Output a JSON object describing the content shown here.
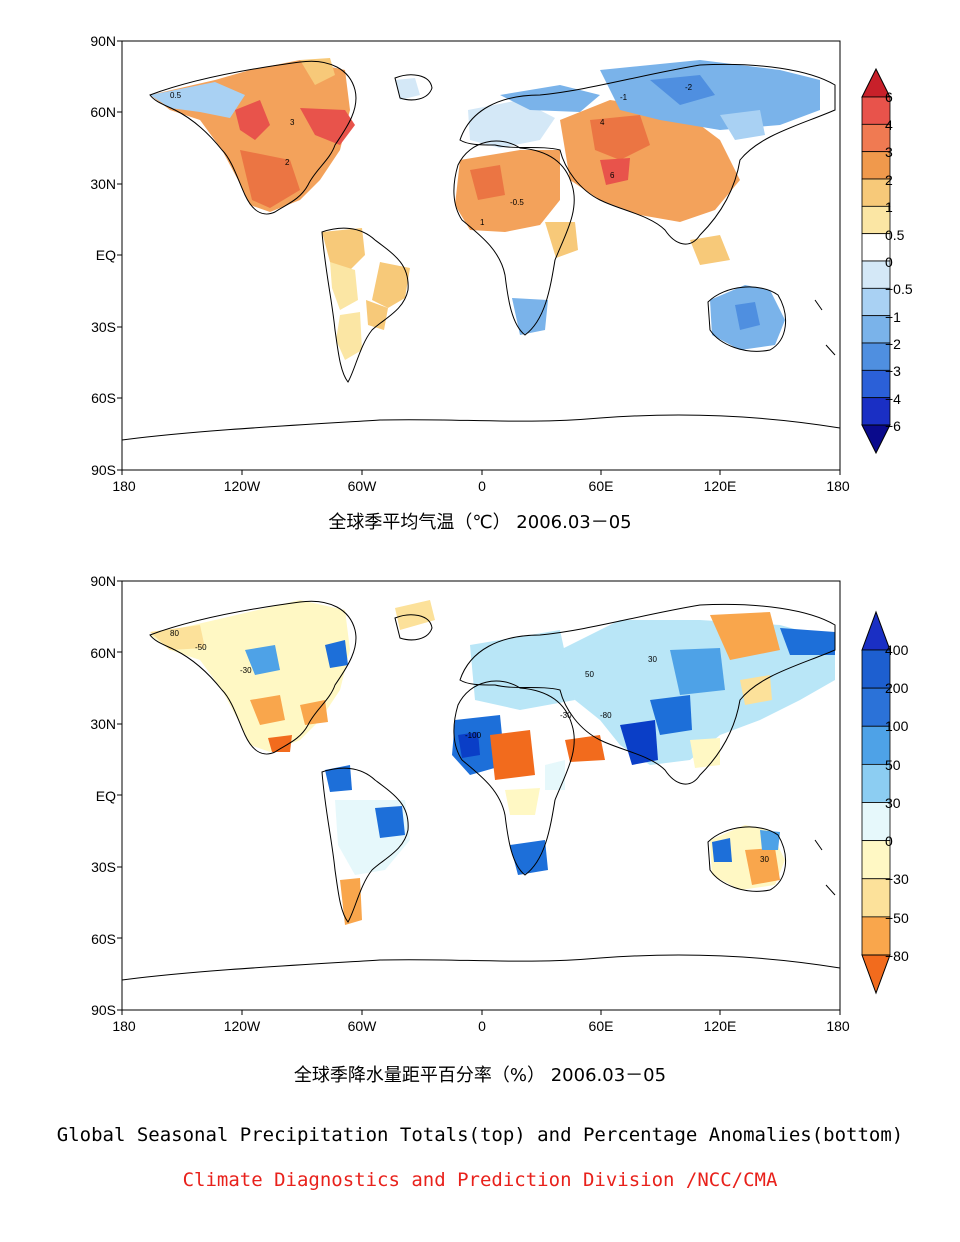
{
  "colors": {
    "ocean": "#ffffff",
    "land_outline": "#000000",
    "warm_palette": [
      "#fbe6a4",
      "#f7c979",
      "#f3a25b",
      "#eb7543",
      "#e8534b",
      "#d73027"
    ],
    "cool_palette": [
      "#d4e8f7",
      "#a9d1f3",
      "#7ab3ea",
      "#4f8fe0",
      "#2b60d8",
      "#1a2fc4",
      "#0a0a8c"
    ],
    "wet_palette": [
      "#e6f8fb",
      "#b9e6f7",
      "#8ccdf2",
      "#4ea2e7",
      "#1d6fd9",
      "#0a3ec7"
    ],
    "dry_palette": [
      "#fff8c4",
      "#fce19a",
      "#f9a64c",
      "#f26b1d"
    ]
  },
  "maps": [
    {
      "id": "temperature",
      "caption": "全球季平均气温（℃） 2006.03－05",
      "lat_ticks": [
        "90N",
        "60N",
        "30N",
        "EQ",
        "30S",
        "60S",
        "90S"
      ],
      "lon_ticks": [
        "180",
        "120W",
        "60W",
        "0",
        "60E",
        "120E",
        "180"
      ],
      "legend": {
        "icon": "colorbar-triangles",
        "labels": [
          "6",
          "4",
          "3",
          "2",
          "1",
          "0.5",
          "0",
          "−0.5",
          "−1",
          "−2",
          "−3",
          "−4",
          "−6"
        ],
        "colors": [
          "#c8202a",
          "#e8534b",
          "#f07a52",
          "#f0994c",
          "#f7c979",
          "#fbe6a4",
          "#ffffff",
          "#d4e8f7",
          "#a9d1f3",
          "#7ab3ea",
          "#4f8fe0",
          "#2b60d8",
          "#1a2fc4",
          "#0a0a8c"
        ]
      },
      "contour_labels": [
        "0.5",
        "3",
        "-1",
        "2",
        "-0.5",
        "6",
        "4",
        "1",
        "-2"
      ]
    },
    {
      "id": "precipitation",
      "caption": "全球季降水量距平百分率（%） 2006.03－05",
      "lat_ticks": [
        "90N",
        "60N",
        "30N",
        "EQ",
        "30S",
        "60S",
        "90S"
      ],
      "lon_ticks": [
        "180",
        "120W",
        "60W",
        "0",
        "60E",
        "120E",
        "180"
      ],
      "legend": {
        "icon": "colorbar-triangles",
        "labels": [
          "400",
          "200",
          "100",
          "50",
          "30",
          "0",
          "−30",
          "−50",
          "−80"
        ],
        "colors": [
          "#1a2fc4",
          "#1d5fd0",
          "#2b72d8",
          "#4ea2e7",
          "#8ccdf2",
          "#e6f8fb",
          "#fff8c4",
          "#fce19a",
          "#f9a64c",
          "#f26b1d"
        ]
      },
      "contour_labels": [
        "80",
        "-50",
        "-30",
        "30",
        "50",
        "-80",
        "-100",
        "-30",
        "30"
      ]
    }
  ],
  "footer": {
    "title": "Global Seasonal Precipitation Totals(top) and Percentage Anomalies(bottom)",
    "credit": "Climate Diagnostics and Prediction Division /NCC/CMA"
  }
}
